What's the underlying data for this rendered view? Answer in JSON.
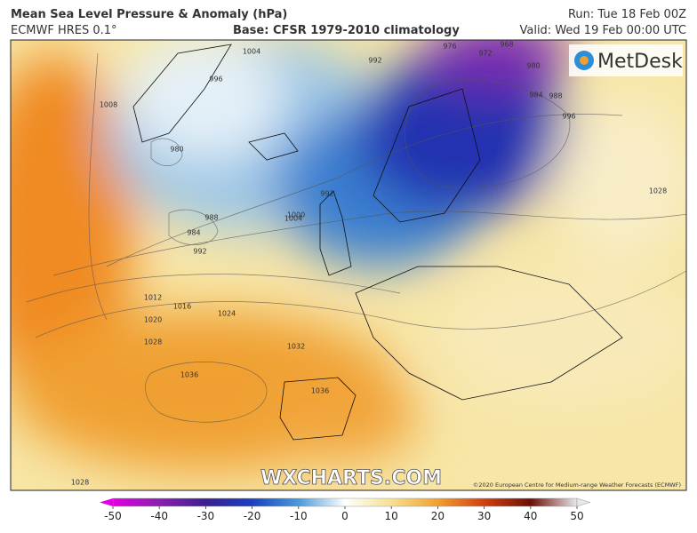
{
  "header": {
    "title": "Mean Sea Level Pressure & Anomaly (hPa)",
    "model": "ECMWF HRES 0.1°",
    "base": "Base: CFSR 1979-2010 climatology",
    "run": "Run: Tue 18 Feb 00Z",
    "valid": "Valid: Wed 19 Feb 00:00 UTC"
  },
  "map": {
    "logo": "MetDesk",
    "watermark": "WXCHARTS.COM",
    "copyright": "©2020 European Centre for Medium-range Weather Forecasts (ECMWF)",
    "isobar_labels": [
      "1036",
      "1036",
      "1032",
      "1028",
      "1028",
      "1024",
      "1020",
      "1016",
      "1012",
      "1008",
      "1004",
      "1000",
      "996",
      "992",
      "992",
      "988",
      "984",
      "980",
      "976",
      "972",
      "968",
      "984",
      "988",
      "996",
      "1028",
      "1004",
      "992",
      "980"
    ]
  },
  "colorbar": {
    "range": [
      -50,
      50
    ],
    "ticks": [
      -50,
      -40,
      -30,
      -20,
      -10,
      0,
      10,
      20,
      30,
      40,
      50
    ]
  }
}
